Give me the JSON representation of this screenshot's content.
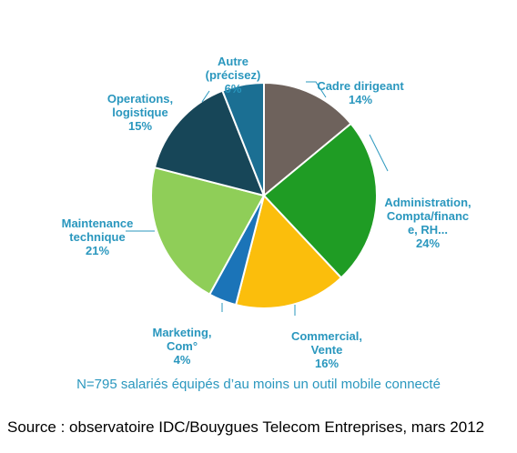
{
  "chart_data": {
    "type": "pie",
    "slices": [
      {
        "label": "Cadre dirigeant",
        "value": 14,
        "value_label": "14%",
        "color": "#6e625c"
      },
      {
        "label": "Administration, Compta/finance, RH...",
        "value": 24,
        "value_label": "24%",
        "color": "#1f9c24"
      },
      {
        "label": "Commercial, Vente",
        "value": 16,
        "value_label": "16%",
        "color": "#fbbe0c"
      },
      {
        "label": "Marketing, Com°",
        "value": 4,
        "value_label": "4%",
        "color": "#1b74b8"
      },
      {
        "label": "Maintenance technique",
        "value": 21,
        "value_label": "21%",
        "color": "#8fce58"
      },
      {
        "label": "Operations, logistique",
        "value": 15,
        "value_label": "15%",
        "color": "#174658"
      },
      {
        "label": "Autre (précisez)",
        "value": 6,
        "value_label": "6%",
        "color": "#1b6f93"
      }
    ],
    "start_angle_deg": 0,
    "direction": "clockwise",
    "label_color": "#2a97be"
  },
  "note": "N=795 salariés équipés d’au moins un outil mobile connecté",
  "source": "Source : observatoire IDC/Bouygues Telecom Entreprises, mars 2012"
}
